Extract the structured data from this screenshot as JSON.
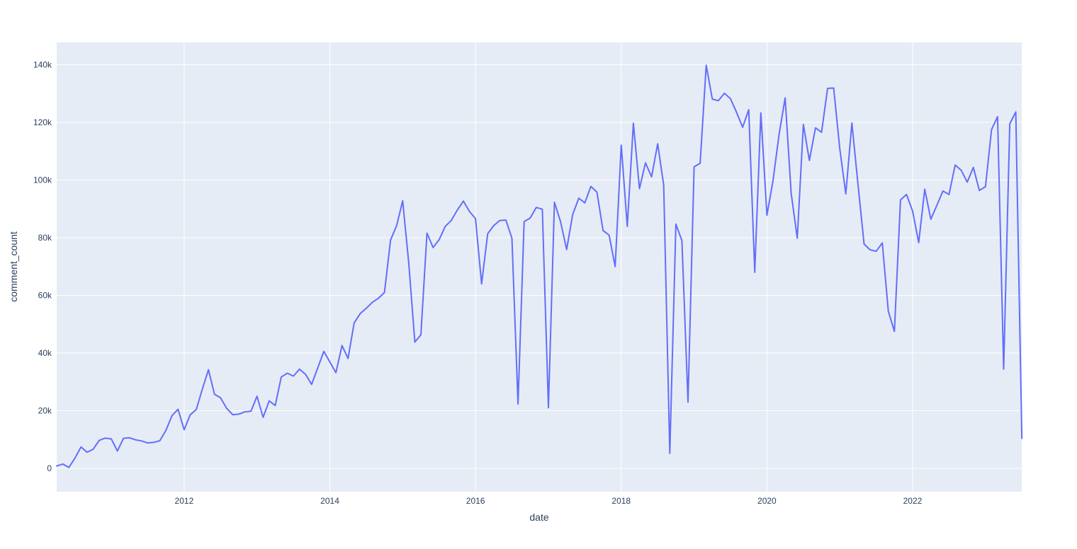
{
  "chart_data": {
    "type": "line",
    "title": "",
    "xlabel": "date",
    "ylabel": "comment_count",
    "series_name": "comment_count",
    "legend": "none",
    "grid": true,
    "x_tick_labels": [
      "2012",
      "2014",
      "2016",
      "2018",
      "2020",
      "2022"
    ],
    "x_tick_years": [
      2012,
      2014,
      2016,
      2018,
      2020,
      2022
    ],
    "y_tick_labels": [
      "0",
      "20k",
      "40k",
      "60k",
      "80k",
      "100k",
      "120k",
      "140k"
    ],
    "y_tick_values": [
      0,
      20000,
      40000,
      60000,
      80000,
      100000,
      120000,
      140000
    ],
    "xlim": [
      "2010-04",
      "2023-07"
    ],
    "ylim": [
      -8100,
      147700
    ],
    "colors": {
      "line": "#636efa",
      "plot_background": "#e5ecf6",
      "grid": "#ffffff",
      "text": "#2a3f5f",
      "page_background": "#ffffff"
    },
    "points": [
      [
        "2010-04",
        800
      ],
      [
        "2010-05",
        1500
      ],
      [
        "2010-06",
        300
      ],
      [
        "2010-07",
        3500
      ],
      [
        "2010-08",
        7400
      ],
      [
        "2010-09",
        5600
      ],
      [
        "2010-10",
        6600
      ],
      [
        "2010-11",
        9700
      ],
      [
        "2010-12",
        10500
      ],
      [
        "2011-01",
        10200
      ],
      [
        "2011-02",
        6000
      ],
      [
        "2011-03",
        10400
      ],
      [
        "2011-04",
        10600
      ],
      [
        "2011-05",
        9900
      ],
      [
        "2011-06",
        9500
      ],
      [
        "2011-07",
        8800
      ],
      [
        "2011-08",
        9000
      ],
      [
        "2011-09",
        9600
      ],
      [
        "2011-10",
        13200
      ],
      [
        "2011-11",
        18300
      ],
      [
        "2011-12",
        20500
      ],
      [
        "2012-01",
        13400
      ],
      [
        "2012-02",
        18600
      ],
      [
        "2012-03",
        20400
      ],
      [
        "2012-04",
        27500
      ],
      [
        "2012-05",
        34200
      ],
      [
        "2012-06",
        25700
      ],
      [
        "2012-07",
        24500
      ],
      [
        "2012-08",
        20800
      ],
      [
        "2012-09",
        18600
      ],
      [
        "2012-10",
        18800
      ],
      [
        "2012-11",
        19600
      ],
      [
        "2012-12",
        19800
      ],
      [
        "2013-01",
        25000
      ],
      [
        "2013-02",
        17700
      ],
      [
        "2013-03",
        23400
      ],
      [
        "2013-04",
        21800
      ],
      [
        "2013-05",
        31700
      ],
      [
        "2013-06",
        33000
      ],
      [
        "2013-07",
        32000
      ],
      [
        "2013-08",
        34400
      ],
      [
        "2013-09",
        32600
      ],
      [
        "2013-10",
        29100
      ],
      [
        "2013-11",
        34800
      ],
      [
        "2013-12",
        40600
      ],
      [
        "2014-01",
        36900
      ],
      [
        "2014-02",
        33200
      ],
      [
        "2014-03",
        42600
      ],
      [
        "2014-04",
        38100
      ],
      [
        "2014-05",
        50400
      ],
      [
        "2014-06",
        53700
      ],
      [
        "2014-07",
        55500
      ],
      [
        "2014-08",
        57600
      ],
      [
        "2014-09",
        59000
      ],
      [
        "2014-10",
        61000
      ],
      [
        "2014-11",
        79200
      ],
      [
        "2014-12",
        84200
      ],
      [
        "2015-01",
        92800
      ],
      [
        "2015-02",
        71200
      ],
      [
        "2015-03",
        43800
      ],
      [
        "2015-04",
        46300
      ],
      [
        "2015-05",
        81600
      ],
      [
        "2015-06",
        76600
      ],
      [
        "2015-07",
        79300
      ],
      [
        "2015-08",
        83900
      ],
      [
        "2015-09",
        86000
      ],
      [
        "2015-10",
        89600
      ],
      [
        "2015-11",
        92700
      ],
      [
        "2015-12",
        89100
      ],
      [
        "2016-01",
        86600
      ],
      [
        "2016-02",
        64000
      ],
      [
        "2016-03",
        81400
      ],
      [
        "2016-04",
        84200
      ],
      [
        "2016-05",
        86000
      ],
      [
        "2016-06",
        86100
      ],
      [
        "2016-07",
        79800
      ],
      [
        "2016-08",
        22300
      ],
      [
        "2016-09",
        85600
      ],
      [
        "2016-10",
        86800
      ],
      [
        "2016-11",
        90500
      ],
      [
        "2016-12",
        89900
      ],
      [
        "2017-01",
        21000
      ],
      [
        "2017-02",
        92300
      ],
      [
        "2017-03",
        85600
      ],
      [
        "2017-04",
        75900
      ],
      [
        "2017-05",
        88000
      ],
      [
        "2017-06",
        93700
      ],
      [
        "2017-07",
        92100
      ],
      [
        "2017-08",
        97800
      ],
      [
        "2017-09",
        95800
      ],
      [
        "2017-10",
        82500
      ],
      [
        "2017-11",
        80900
      ],
      [
        "2017-12",
        70000
      ],
      [
        "2018-01",
        112100
      ],
      [
        "2018-02",
        83900
      ],
      [
        "2018-03",
        119700
      ],
      [
        "2018-04",
        97000
      ],
      [
        "2018-05",
        106000
      ],
      [
        "2018-06",
        101100
      ],
      [
        "2018-07",
        112600
      ],
      [
        "2018-08",
        98200
      ],
      [
        "2018-09",
        5200
      ],
      [
        "2018-10",
        84700
      ],
      [
        "2018-11",
        79000
      ],
      [
        "2018-12",
        23000
      ],
      [
        "2019-01",
        104600
      ],
      [
        "2019-02",
        105800
      ],
      [
        "2019-03",
        139800
      ],
      [
        "2019-04",
        128100
      ],
      [
        "2019-05",
        127500
      ],
      [
        "2019-06",
        130100
      ],
      [
        "2019-07",
        128200
      ],
      [
        "2019-08",
        123500
      ],
      [
        "2019-09",
        118300
      ],
      [
        "2019-10",
        124400
      ],
      [
        "2019-11",
        68000
      ],
      [
        "2019-12",
        123300
      ],
      [
        "2020-01",
        87800
      ],
      [
        "2020-02",
        99700
      ],
      [
        "2020-03",
        115800
      ],
      [
        "2020-04",
        128500
      ],
      [
        "2020-05",
        95400
      ],
      [
        "2020-06",
        79800
      ],
      [
        "2020-07",
        119300
      ],
      [
        "2020-08",
        106800
      ],
      [
        "2020-09",
        118100
      ],
      [
        "2020-10",
        116600
      ],
      [
        "2020-11",
        131800
      ],
      [
        "2020-12",
        131900
      ],
      [
        "2021-01",
        110900
      ],
      [
        "2021-02",
        95200
      ],
      [
        "2021-03",
        119800
      ],
      [
        "2021-04",
        98500
      ],
      [
        "2021-05",
        77800
      ],
      [
        "2021-06",
        75800
      ],
      [
        "2021-07",
        75300
      ],
      [
        "2021-08",
        78200
      ],
      [
        "2021-09",
        54500
      ],
      [
        "2021-10",
        47500
      ],
      [
        "2021-11",
        93100
      ],
      [
        "2021-12",
        95000
      ],
      [
        "2022-01",
        89200
      ],
      [
        "2022-02",
        78300
      ],
      [
        "2022-03",
        96800
      ],
      [
        "2022-04",
        86400
      ],
      [
        "2022-05",
        91300
      ],
      [
        "2022-06",
        96200
      ],
      [
        "2022-07",
        95000
      ],
      [
        "2022-08",
        105200
      ],
      [
        "2022-09",
        103400
      ],
      [
        "2022-10",
        99300
      ],
      [
        "2022-11",
        104400
      ],
      [
        "2022-12",
        96400
      ],
      [
        "2023-01",
        97700
      ],
      [
        "2023-02",
        117500
      ],
      [
        "2023-03",
        122000
      ],
      [
        "2023-04",
        34400
      ],
      [
        "2023-05",
        119500
      ],
      [
        "2023-06",
        123600
      ],
      [
        "2023-07",
        10400
      ]
    ]
  }
}
